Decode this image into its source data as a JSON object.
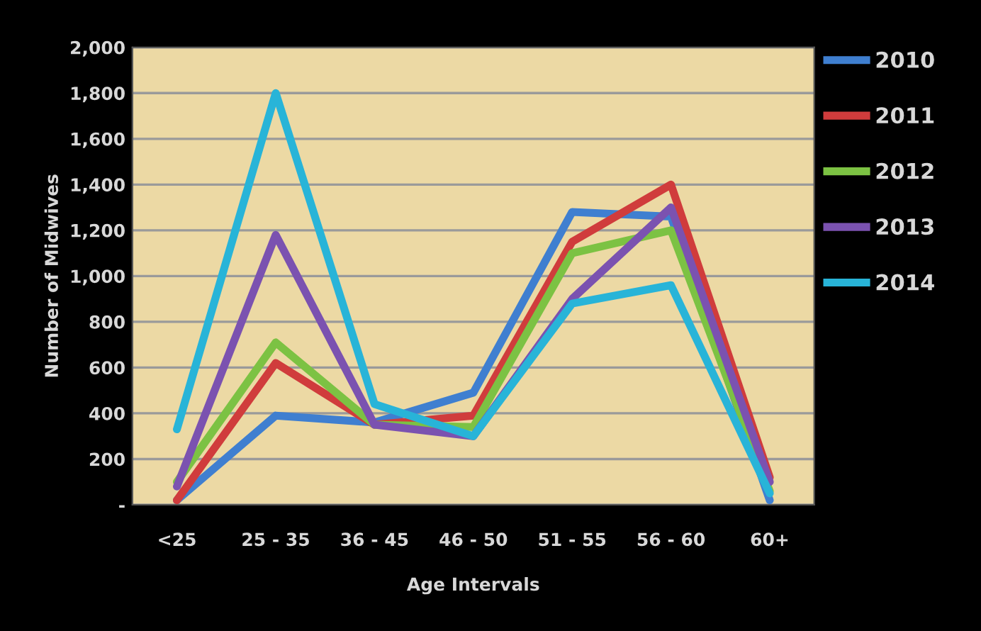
{
  "chart_data": {
    "type": "line",
    "xlabel": "Age Intervals",
    "ylabel": "Number of Midwives",
    "categories": [
      "<25",
      "25 - 35",
      "36 - 45",
      "46 - 50",
      "51 - 55",
      "56 - 60",
      "60+"
    ],
    "series": [
      {
        "name": "2010",
        "color": "#3f7fd0",
        "values": [
          20,
          390,
          360,
          490,
          1280,
          1260,
          20
        ]
      },
      {
        "name": "2011",
        "color": "#d03c3c",
        "values": [
          20,
          620,
          350,
          390,
          1150,
          1400,
          120
        ]
      },
      {
        "name": "2012",
        "color": "#7cc243",
        "values": [
          100,
          710,
          350,
          340,
          1100,
          1200,
          60
        ]
      },
      {
        "name": "2013",
        "color": "#7b52b0",
        "values": [
          80,
          1180,
          350,
          300,
          900,
          1300,
          100
        ]
      },
      {
        "name": "2014",
        "color": "#28b4d8",
        "values": [
          330,
          1800,
          440,
          300,
          880,
          960,
          50
        ]
      }
    ],
    "ylim": [
      0,
      2000
    ],
    "yticks": [
      {
        "value": 0,
        "label": "-"
      },
      {
        "value": 200,
        "label": "200"
      },
      {
        "value": 400,
        "label": "400"
      },
      {
        "value": 600,
        "label": "600"
      },
      {
        "value": 800,
        "label": "800"
      },
      {
        "value": 1000,
        "label": "1,000"
      },
      {
        "value": 1200,
        "label": "1,200"
      },
      {
        "value": 1400,
        "label": "1,400"
      },
      {
        "value": 1600,
        "label": "1,600"
      },
      {
        "value": 1800,
        "label": "1,800"
      },
      {
        "value": 2000,
        "label": "2,000"
      }
    ],
    "grid": "y",
    "legend": "right",
    "marker": "none",
    "line_style": "solid"
  }
}
